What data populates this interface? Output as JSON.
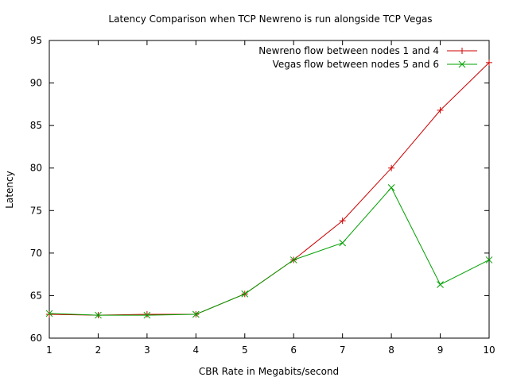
{
  "chart_data": {
    "type": "line",
    "title": "Latency Comparison when TCP Newreno is run alongside TCP Vegas",
    "xlabel": "CBR Rate in Megabits/second",
    "ylabel": "Latency",
    "xlim": [
      1,
      10
    ],
    "ylim": [
      60,
      95
    ],
    "x_ticks": [
      1,
      2,
      3,
      4,
      5,
      6,
      7,
      8,
      9,
      10
    ],
    "y_ticks": [
      60,
      65,
      70,
      75,
      80,
      85,
      90,
      95
    ],
    "grid": false,
    "legend_position": "top-right",
    "x": [
      1,
      2,
      3,
      4,
      5,
      6,
      7,
      8,
      9,
      10
    ],
    "series": [
      {
        "name": "Newreno flow between nodes 1 and 4",
        "color": "#cc0000",
        "marker": "plus",
        "values": [
          62.8,
          62.7,
          62.8,
          62.8,
          65.2,
          69.2,
          73.8,
          80.0,
          86.8,
          92.4
        ]
      },
      {
        "name": "Vegas flow between nodes 5 and 6",
        "color": "#00a000",
        "marker": "cross",
        "values": [
          62.9,
          62.7,
          62.7,
          62.8,
          65.2,
          69.2,
          71.2,
          77.7,
          66.3,
          69.2
        ]
      }
    ]
  }
}
